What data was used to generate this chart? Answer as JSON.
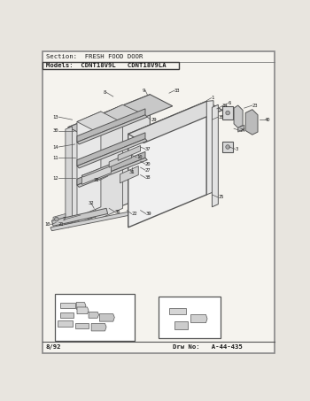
{
  "section_text": "Section:  FRESH FOOD DOOR",
  "models_text": "Models:  CDNT18V9L   CDNT18V9LA",
  "date_text": "8/92",
  "drw_text": "Drw No:   A-44-435",
  "page_bg": "#e8e5df",
  "inner_bg": "#f5f3ee",
  "line_color": "#3a3a3a",
  "text_color": "#1a1a1a",
  "diagram_color": "#555555",
  "part_fill": "#c8c8c8",
  "part_fill2": "#b8b8b8",
  "part_fill3": "#d8d8d8"
}
